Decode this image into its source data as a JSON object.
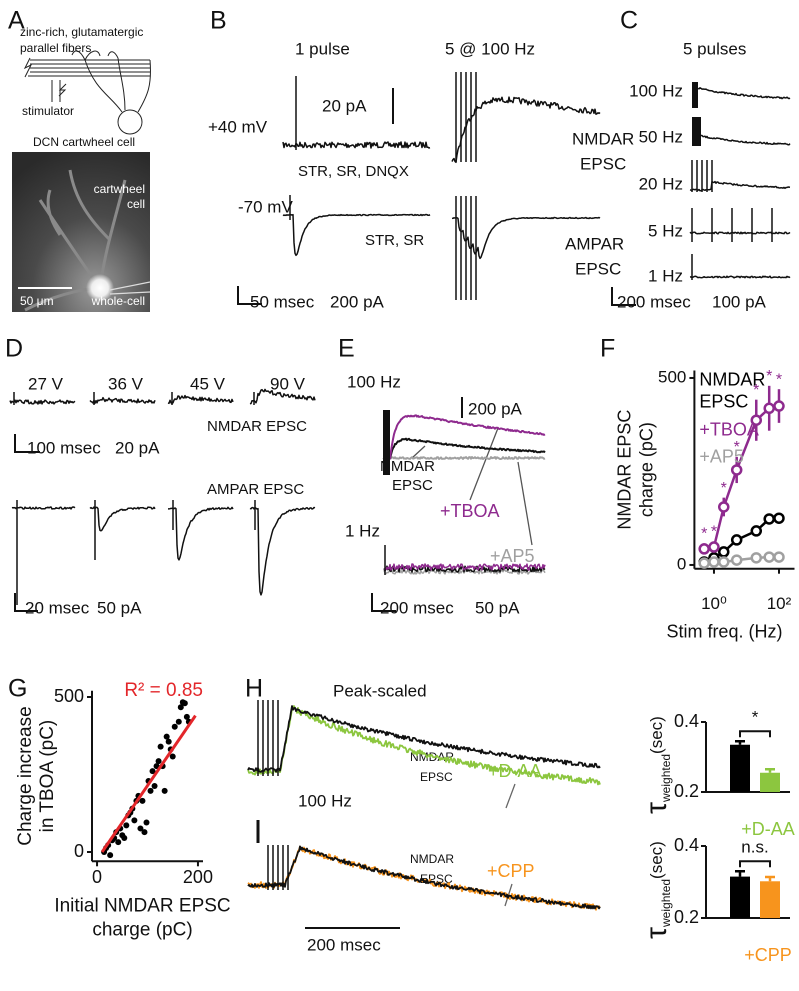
{
  "panel_labels": [
    "A",
    "B",
    "C",
    "D",
    "E",
    "F",
    "G",
    "H"
  ],
  "panel_a": {
    "schematic_labels": [
      "zinc-rich, glutamatergic",
      "parallel fibers",
      "stimulator",
      "DCN cartwheel cell"
    ],
    "image_labels": [
      "cartwheel",
      "cell",
      "50 μm",
      "whole-cell"
    ]
  },
  "panel_b": {
    "conditions": [
      "1 pulse",
      "5 @ 100 Hz"
    ],
    "holding": [
      "+40 mV",
      "-70 mV"
    ],
    "scale_top": "20 pA",
    "drugs_top": "STR, SR, DNQX",
    "drugs_bottom": "STR, SR",
    "nmdar_label": [
      "NMDAR",
      "EPSC"
    ],
    "ampar_label": [
      "AMPAR",
      "EPSC"
    ],
    "scale_bottom": [
      "50 msec",
      "200 pA"
    ]
  },
  "panel_c": {
    "title": "5 pulses",
    "frequencies": [
      "100 Hz",
      "50 Hz",
      "20 Hz",
      "5 Hz",
      "1 Hz"
    ],
    "scale": [
      "200 msec",
      "100 pA"
    ]
  },
  "panel_d": {
    "intensities": [
      "27 V",
      "36 V",
      "45 V",
      "90 V"
    ],
    "nmdar_label": "NMDAR EPSC",
    "scale_top": [
      "100 msec",
      "20 pA"
    ],
    "ampar_label": "AMPAR EPSC",
    "scale_bottom": [
      "20 msec",
      "50 pA"
    ]
  },
  "panel_e": {
    "top_frequency": "100 Hz",
    "scale_top": "200 pA",
    "trace_labels": [
      "NMDAR",
      "EPSC",
      "+TBOA",
      "+AP5"
    ],
    "bottom_frequency": "1 Hz",
    "scale_bottom": [
      "200 msec",
      "50 pA"
    ]
  },
  "panel_h": {
    "title": "Peak-scaled",
    "top_labels": [
      "NMDAR",
      "EPSC",
      "+D-AA"
    ],
    "frequency": "100 Hz",
    "bottom_labels": [
      "NMDAR",
      "EPSC",
      "+CPP"
    ],
    "scale": "200 msec"
  },
  "chart_data": [
    {
      "type": "line",
      "ylabel": "NMDAR EPSC charge (pC)",
      "xlabel": "Stim freq. (Hz)",
      "xscale": "log",
      "x": [
        0.5,
        1,
        2,
        5,
        20,
        50,
        100
      ],
      "xlim": [
        0.25,
        300
      ],
      "xticks": [
        {
          "value": 1,
          "label": "10⁰"
        },
        {
          "value": 100,
          "label": "10²"
        }
      ],
      "ylim": [
        -10,
        520
      ],
      "yticks": [
        0,
        500
      ],
      "series": [
        {
          "name": "NMDAR EPSC",
          "color": "#000000",
          "values": [
            8,
            19,
            35,
            67,
            91,
            123,
            125
          ]
        },
        {
          "name": "+TBOA",
          "color": "#8e2a8e",
          "values": [
            43,
            48,
            155,
            254,
            387,
            419,
            425
          ],
          "errors": [
            15,
            15,
            25,
            35,
            55,
            60,
            45
          ]
        },
        {
          "name": "+AP5",
          "color": "#a0a0a0",
          "values": [
            5,
            8,
            8,
            13,
            19,
            21,
            21
          ]
        }
      ],
      "annotations": [
        "*",
        "*",
        "*",
        "*",
        "*",
        "*",
        "*"
      ]
    },
    {
      "type": "scatter",
      "annotation": "R² = 0.85",
      "ylabel": "Charge increase in TBOA (pC)",
      "xlabel": "Initial NMDAR EPSC charge (pC)",
      "x": [
        14,
        18,
        22,
        26,
        30,
        34,
        38,
        42,
        46,
        50,
        54,
        58,
        62,
        66,
        70,
        74,
        78,
        82,
        86,
        90,
        94,
        98,
        102,
        106,
        110,
        114,
        118,
        122,
        126,
        130,
        134,
        138,
        142,
        146,
        150,
        154,
        162,
        166,
        170,
        174,
        178,
        182
      ],
      "y": [
        0,
        13,
        22,
        -10,
        38,
        45,
        64,
        32,
        76,
        54,
        45,
        86,
        118,
        127,
        140,
        102,
        165,
        181,
        76,
        165,
        64,
        95,
        229,
        197,
        261,
        213,
        277,
        293,
        340,
        277,
        197,
        372,
        356,
        331,
        308,
        404,
        420,
        467,
        483,
        480,
        436,
        420
      ],
      "color": "#000000",
      "fit_line": {
        "x": [
          10,
          195
        ],
        "y": [
          0,
          440
        ],
        "color": "#e3262a"
      },
      "xlim": [
        -10,
        210
      ],
      "xticks": [
        0,
        200
      ],
      "ylim": [
        -30,
        520
      ],
      "yticks": [
        0,
        500
      ]
    },
    {
      "type": "bar",
      "ylabel": "τ",
      "ylabel_subscript": "weighted",
      "ylabel_unit": "(sec)",
      "categories": [
        null,
        "+D-AA"
      ],
      "values": [
        0.335,
        0.255
      ],
      "errors": [
        0.01,
        0.01
      ],
      "colors": [
        "#000000",
        "#8cc63f"
      ],
      "significance": "*",
      "ylim": [
        0.2,
        0.4
      ],
      "yticks": [
        0.2,
        0.4
      ]
    },
    {
      "type": "bar",
      "ylabel": "τ",
      "ylabel_subscript": "weighted",
      "ylabel_unit": "(sec)",
      "categories": [
        null,
        "+CPP"
      ],
      "values": [
        0.315,
        0.302
      ],
      "errors": [
        0.015,
        0.012
      ],
      "colors": [
        "#000000",
        "#f7941d"
      ],
      "significance": "n.s.",
      "ylim": [
        0.2,
        0.4
      ],
      "yticks": [
        0.2,
        0.4
      ]
    }
  ]
}
